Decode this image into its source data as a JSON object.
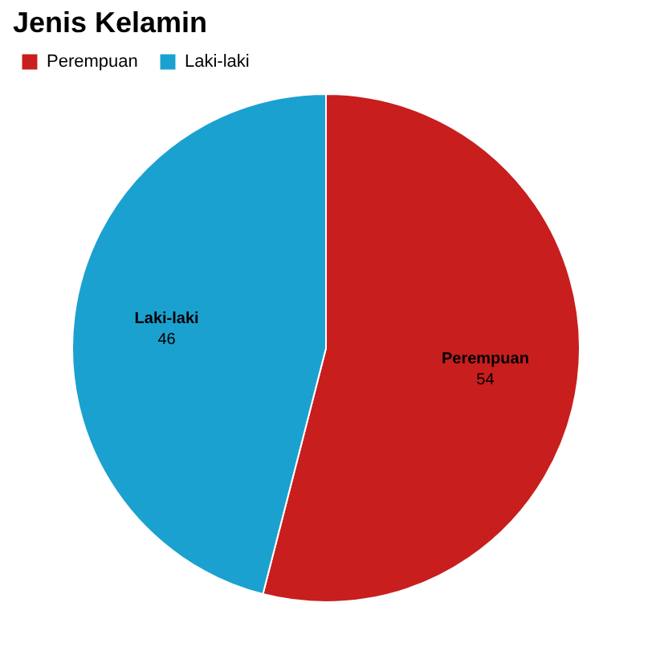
{
  "chart_data": {
    "type": "pie",
    "title": "Jenis Kelamin",
    "categories": [
      "Perempuan",
      "Laki-laki"
    ],
    "values": [
      54,
      46
    ],
    "colors": [
      "#c81e1e",
      "#1ba1d0"
    ],
    "data_labels": true,
    "legend": "top left"
  }
}
